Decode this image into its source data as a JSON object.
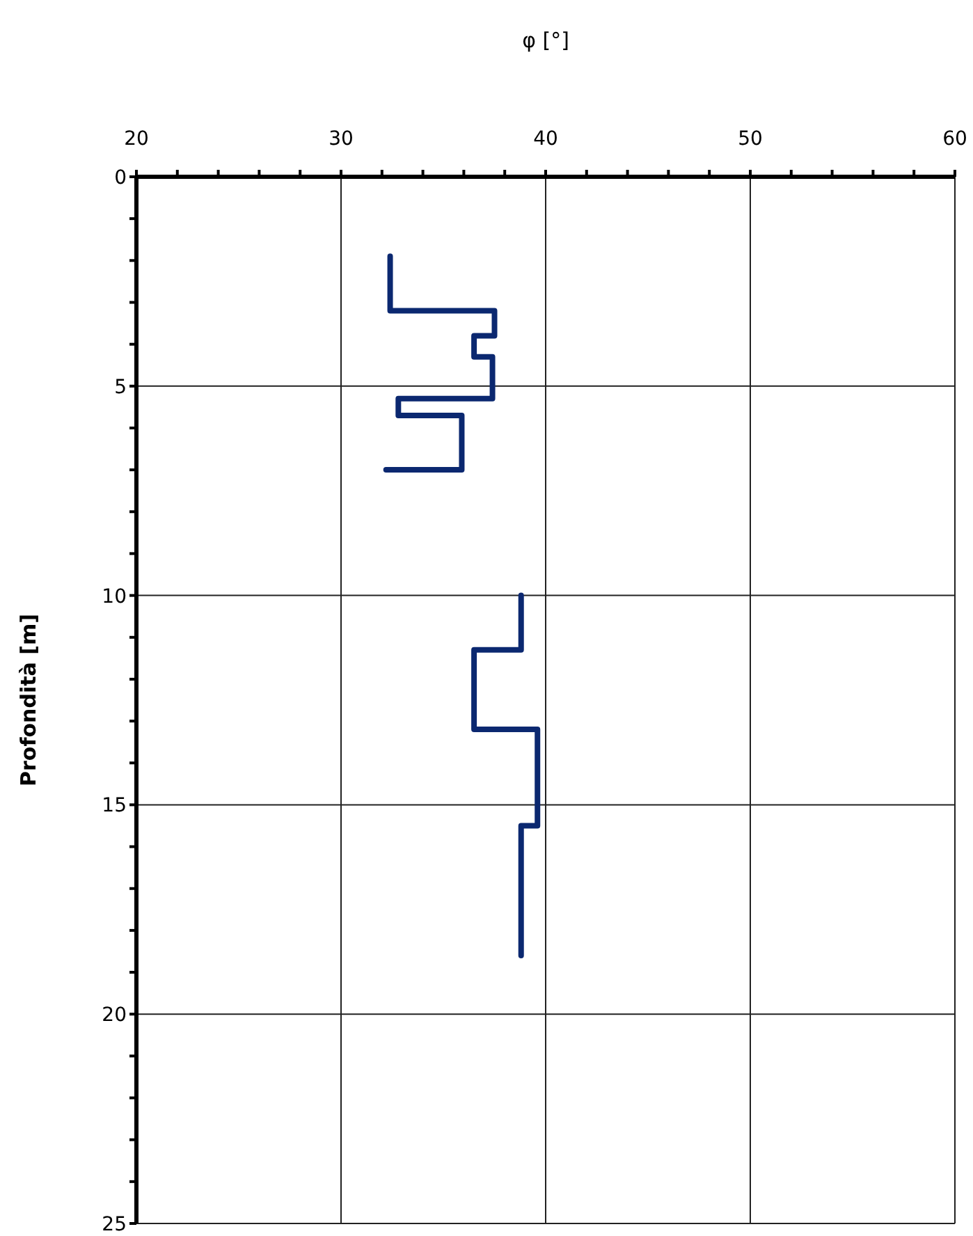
{
  "chart_data": {
    "type": "line",
    "xlabel": "φ [°]",
    "ylabel": "Profondità [m]",
    "xlim": [
      20,
      60
    ],
    "xticks": [
      20,
      {
        "value": 22,
        "label": null
      },
      {
        "value": 24,
        "label": null
      },
      {
        "value": 26,
        "label": null
      },
      {
        "value": 28,
        "label": null
      },
      30,
      {
        "value": 32,
        "label": null
      },
      {
        "value": 34,
        "label": null
      },
      {
        "value": 36,
        "label": null
      },
      {
        "value": 38,
        "label": null
      },
      40,
      {
        "value": 42,
        "label": null
      },
      {
        "value": 44,
        "label": null
      },
      {
        "value": 46,
        "label": null
      },
      {
        "value": 48,
        "label": null
      },
      50,
      {
        "value": 52,
        "label": null
      },
      {
        "value": 54,
        "label": null
      },
      {
        "value": 56,
        "label": null
      },
      {
        "value": 58,
        "label": null
      },
      60
    ],
    "ylim": [
      25,
      0
    ],
    "yticks": [
      0,
      {
        "value": 1,
        "label": null
      },
      {
        "value": 2,
        "label": null
      },
      {
        "value": 3,
        "label": null
      },
      {
        "value": 4,
        "label": null
      },
      5,
      {
        "value": 6,
        "label": null
      },
      {
        "value": 7,
        "label": null
      },
      {
        "value": 8,
        "label": null
      },
      {
        "value": 9,
        "label": null
      },
      10,
      {
        "value": 11,
        "label": null
      },
      {
        "value": 12,
        "label": null
      },
      {
        "value": 13,
        "label": null
      },
      {
        "value": 14,
        "label": null
      },
      15,
      {
        "value": 16,
        "label": null
      },
      {
        "value": 17,
        "label": null
      },
      {
        "value": 18,
        "label": null
      },
      {
        "value": 19,
        "label": null
      },
      20,
      {
        "value": 21,
        "label": null
      },
      {
        "value": 22,
        "label": null
      },
      {
        "value": 23,
        "label": null
      },
      {
        "value": 24,
        "label": null
      },
      25
    ],
    "grid": true,
    "marker": "none",
    "line_style": "solid",
    "series": [
      {
        "color": "#0b2870",
        "x": [
          32.4,
          32.4,
          37.5,
          37.5,
          36.5,
          36.5,
          37.4,
          37.4,
          32.8,
          32.8,
          35.9,
          35.9,
          32.2
        ],
        "values": [
          1.9,
          3.2,
          3.2,
          3.8,
          3.8,
          4.3,
          4.3,
          5.3,
          5.3,
          5.7,
          5.7,
          7.0,
          7.0
        ]
      },
      {
        "color": "#0b2870",
        "x": [
          38.8,
          38.8,
          36.5,
          36.5,
          39.6,
          39.6,
          38.8,
          38.8
        ],
        "values": [
          10.0,
          11.3,
          11.3,
          13.2,
          13.2,
          15.5,
          15.5,
          18.6
        ]
      }
    ]
  }
}
